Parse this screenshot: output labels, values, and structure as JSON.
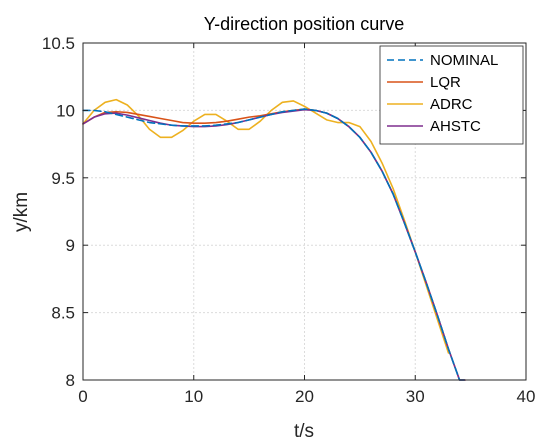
{
  "chart_data": {
    "type": "line",
    "title": "Y-direction position curve",
    "xlabel": "t/s",
    "ylabel": "y/km",
    "xlim": [
      0,
      40
    ],
    "ylim": [
      8,
      10.5
    ],
    "xticks": [
      0,
      10,
      20,
      30,
      40
    ],
    "yticks": [
      8,
      8.5,
      9,
      9.5,
      10,
      10.5
    ],
    "xtick_labels": [
      "0",
      "10",
      "20",
      "30",
      "40"
    ],
    "ytick_labels": [
      "8",
      "8.5",
      "9",
      "9.5",
      "10",
      "10.5"
    ],
    "grid": true,
    "legend_position": "top-right",
    "series": [
      {
        "name": "NOMINAL",
        "color": "#0072BD",
        "dash": "dashed",
        "x": [
          0,
          1,
          2,
          3,
          4,
          5,
          6,
          7,
          8,
          9,
          10,
          11,
          12,
          13,
          14,
          15,
          16,
          17,
          18,
          19,
          20,
          21,
          22,
          23,
          24,
          25,
          26,
          27,
          28,
          29,
          30,
          31,
          32,
          33,
          34,
          34.5
        ],
        "y": [
          10.0,
          10.0,
          9.99,
          9.97,
          9.95,
          9.93,
          9.91,
          9.9,
          9.89,
          9.885,
          9.885,
          9.885,
          9.89,
          9.9,
          9.91,
          9.93,
          9.95,
          9.97,
          9.99,
          10.0,
          10.01,
          10.0,
          9.98,
          9.94,
          9.88,
          9.8,
          9.69,
          9.55,
          9.38,
          9.17,
          8.95,
          8.72,
          8.48,
          8.23,
          8.0,
          8.0
        ]
      },
      {
        "name": "LQR",
        "color": "#D95319",
        "dash": "solid",
        "x": [
          0,
          1,
          2,
          3,
          4,
          5,
          6,
          7,
          8,
          9,
          10,
          11,
          12,
          13,
          14,
          15,
          16,
          17,
          18,
          19,
          20,
          21,
          22,
          23,
          24,
          25,
          26,
          27,
          28,
          29,
          30,
          31,
          32,
          33,
          34,
          34.5
        ],
        "y": [
          9.9,
          9.95,
          9.985,
          9.99,
          9.985,
          9.97,
          9.955,
          9.94,
          9.925,
          9.91,
          9.905,
          9.905,
          9.91,
          9.92,
          9.935,
          9.95,
          9.96,
          9.975,
          9.99,
          10.0,
          10.01,
          10.0,
          9.98,
          9.94,
          9.88,
          9.8,
          9.69,
          9.55,
          9.38,
          9.17,
          8.95,
          8.72,
          8.48,
          8.23,
          8.0,
          8.0
        ]
      },
      {
        "name": "ADRC",
        "color": "#EDB120",
        "dash": "solid",
        "x": [
          0,
          1,
          2,
          3,
          4,
          5,
          6,
          7,
          8,
          9,
          10,
          11,
          12,
          13,
          14,
          15,
          16,
          17,
          18,
          19,
          20,
          21,
          22,
          23,
          24,
          25,
          26,
          27,
          28,
          29,
          30,
          31,
          32,
          33,
          34,
          34.5
        ],
        "y": [
          9.9,
          10.0,
          10.06,
          10.08,
          10.04,
          9.96,
          9.86,
          9.8,
          9.8,
          9.85,
          9.92,
          9.97,
          9.97,
          9.92,
          9.86,
          9.86,
          9.92,
          10.0,
          10.06,
          10.07,
          10.03,
          9.98,
          9.93,
          9.91,
          9.91,
          9.88,
          9.77,
          9.61,
          9.42,
          9.19,
          8.95,
          8.7,
          8.45,
          8.2,
          7.98,
          7.95
        ]
      },
      {
        "name": "AHSTC",
        "color": "#7E2F8E",
        "dash": "solid",
        "x": [
          0,
          1,
          2,
          3,
          4,
          5,
          6,
          7,
          8,
          9,
          10,
          11,
          12,
          13,
          14,
          15,
          16,
          17,
          18,
          19,
          20,
          21,
          22,
          23,
          24,
          25,
          26,
          27,
          28,
          29,
          30,
          31,
          32,
          33,
          34,
          34.5
        ],
        "y": [
          9.9,
          9.95,
          9.975,
          9.98,
          9.965,
          9.945,
          9.925,
          9.905,
          9.89,
          9.885,
          9.88,
          9.88,
          9.885,
          9.895,
          9.91,
          9.93,
          9.95,
          9.97,
          9.985,
          9.995,
          10.005,
          10.0,
          9.98,
          9.94,
          9.88,
          9.8,
          9.69,
          9.55,
          9.38,
          9.17,
          8.95,
          8.72,
          8.48,
          8.23,
          8.0,
          8.0
        ]
      }
    ]
  }
}
